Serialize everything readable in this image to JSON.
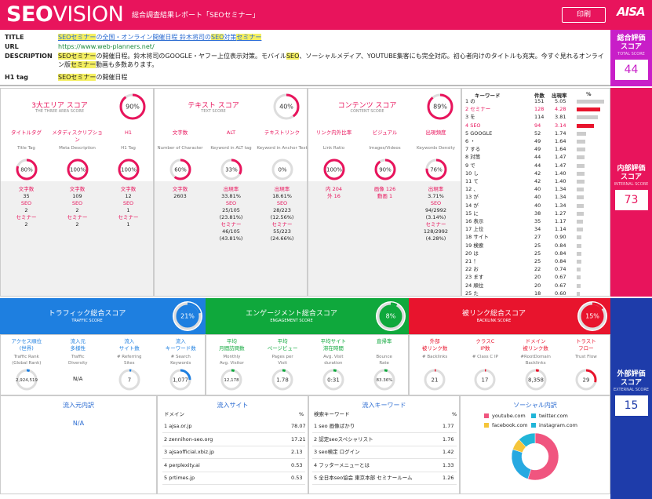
{
  "header": {
    "logo_bold": "SEO",
    "logo_light": "VISION",
    "title": "総合調査結果レポート「SEOセミナー」",
    "print": "印刷",
    "brand": "AISA"
  },
  "meta": {
    "title_k": "TITLE",
    "title_v": "SEOセミナーの全国・オンライン開催日程 鈴木将司のSEO対策セミナー",
    "url_k": "URL",
    "url_v": "https://www.web-planners.net/",
    "desc_k": "DESCRIPTION",
    "desc_v": "SEOセミナーの開催日程。鈴木将司のGOOGLE・ヤフー上位表示対策。モバイルSEO、ソーシャルメディア、YOUTUBE集客にも完全対応。初心者向けのタイトルも充実。今すぐ見れるオンライン版セミナー動画も多数あります。",
    "h1_k": "H1 tag",
    "h1_v": "SEOセミナーの開催日程"
  },
  "side": {
    "total": {
      "t1": "総合評価",
      "t2": "スコア",
      "sub": "TOTAL SCORE",
      "val": "44",
      "color": "#c81ec8"
    },
    "internal": {
      "t1": "内部評価",
      "t2": "スコア",
      "sub": "INTERNAL SCORE",
      "val": "73",
      "color": "#e8145c"
    },
    "external": {
      "t1": "外部評価",
      "t2": "スコア",
      "sub": "EXTERNAL SCORE",
      "val": "15",
      "color": "#1e3caa"
    }
  },
  "areas": [
    {
      "title": "3大エリア スコア",
      "sub": "THE THREE AREA SCORE",
      "score": 90,
      "cols": [
        {
          "t": "タイトルタグ",
          "s": "Title Tag",
          "score": 80,
          "stats": [
            [
              "文字数",
              ""
            ],
            [
              "35",
              "b"
            ],
            [
              "SEO",
              ""
            ],
            [
              "2",
              "b"
            ],
            [
              "セミナー",
              ""
            ],
            [
              "2",
              "b"
            ]
          ]
        },
        {
          "t": "メタディスクリプション",
          "s": "Meta Description",
          "score": 100,
          "stats": [
            [
              "文字数",
              ""
            ],
            [
              "109",
              "b"
            ],
            [
              "SEO",
              ""
            ],
            [
              "2",
              "b"
            ],
            [
              "セミナー",
              ""
            ],
            [
              "2",
              "b"
            ]
          ]
        },
        {
          "t": "H1",
          "s": "H1 Tag",
          "score": 100,
          "stats": [
            [
              "文字数",
              ""
            ],
            [
              "12",
              "b"
            ],
            [
              "SEO",
              ""
            ],
            [
              "1",
              "b"
            ],
            [
              "セミナー",
              ""
            ],
            [
              "1",
              "b"
            ]
          ]
        }
      ]
    },
    {
      "title": "テキスト スコア",
      "sub": "TEXT SCORE",
      "score": 40,
      "cols": [
        {
          "t": "文字数",
          "s": "Number of Character",
          "score": 60,
          "stats": [
            [
              "文字数",
              ""
            ],
            [
              "2603",
              "b"
            ]
          ]
        },
        {
          "t": "ALT",
          "s": "Keyword in ALT tag",
          "score": 33,
          "stats": [
            [
              "出現率",
              ""
            ],
            [
              "33.81%",
              "b"
            ],
            [
              "SEO",
              ""
            ],
            [
              "25/105",
              "b"
            ],
            [
              "(23.81%)",
              "b"
            ],
            [
              "セミナー",
              ""
            ],
            [
              "46/105",
              "b"
            ],
            [
              "(43.81%)",
              "b"
            ]
          ]
        },
        {
          "t": "テキストリンク",
          "s": "Keyword in Anchor Text",
          "score": 0,
          "stats": [
            [
              "出現率",
              ""
            ],
            [
              "18.61%",
              "b"
            ],
            [
              "SEO",
              ""
            ],
            [
              "28/223",
              "b"
            ],
            [
              "(12.56%)",
              "b"
            ],
            [
              "セミナー",
              ""
            ],
            [
              "55/223",
              "b"
            ],
            [
              "(24.66%)",
              "b"
            ]
          ]
        }
      ]
    },
    {
      "title": "コンテンツ スコア",
      "sub": "CONTENT SCORE",
      "score": 89,
      "cols": [
        {
          "t": "リンク内外比率",
          "s": "Link Ratio",
          "score": 100,
          "stats": [
            [
              "内 204",
              ""
            ],
            [
              "外 16",
              ""
            ]
          ]
        },
        {
          "t": "ビジュアル",
          "s": "Images/Videos",
          "score": 90,
          "stats": [
            [
              "画像 126",
              ""
            ],
            [
              "動画 1",
              ""
            ]
          ]
        },
        {
          "t": "出現頻度",
          "s": "Keywords Density",
          "score": 76,
          "stats": [
            [
              "出現率",
              ""
            ],
            [
              "3.71%",
              "b"
            ],
            [
              "SEO",
              ""
            ],
            [
              "94/2992",
              "b"
            ],
            [
              "(3.14%)",
              "b"
            ],
            [
              "セミナー",
              ""
            ],
            [
              "128/2992",
              "b"
            ],
            [
              "(4.28%)",
              "b"
            ]
          ]
        }
      ]
    }
  ],
  "keywords": {
    "h_kw": "キーワード",
    "h_count": "件数",
    "h_rate": "出現率",
    "h_pct": "%",
    "rows": [
      [
        "1",
        "の",
        "151",
        "5.05",
        0
      ],
      [
        "2",
        "セミナー",
        "128",
        "4.28",
        1
      ],
      [
        "3",
        "を",
        "114",
        "3.81",
        0
      ],
      [
        "4",
        "SEO",
        "94",
        "3.14",
        1
      ],
      [
        "5",
        "GOOGLE",
        "52",
        "1.74",
        0
      ],
      [
        "6",
        "・",
        "49",
        "1.64",
        0
      ],
      [
        "7",
        "する",
        "49",
        "1.64",
        0
      ],
      [
        "8",
        "対策",
        "44",
        "1.47",
        0
      ],
      [
        "9",
        "で",
        "44",
        "1.47",
        0
      ],
      [
        "10",
        "し",
        "42",
        "1.40",
        0
      ],
      [
        "11",
        "て",
        "42",
        "1.40",
        0
      ],
      [
        "12",
        "、",
        "40",
        "1.34",
        0
      ],
      [
        "13",
        "が",
        "40",
        "1.34",
        0
      ],
      [
        "14",
        "が",
        "40",
        "1.34",
        0
      ],
      [
        "15",
        "に",
        "38",
        "1.27",
        0
      ],
      [
        "16",
        "表示",
        "35",
        "1.17",
        0
      ],
      [
        "17",
        "上位",
        "34",
        "1.14",
        0
      ],
      [
        "18",
        "サイト",
        "27",
        "0.90",
        0
      ],
      [
        "19",
        "検索",
        "25",
        "0.84",
        0
      ],
      [
        "20",
        "は",
        "25",
        "0.84",
        0
      ],
      [
        "21",
        "！",
        "25",
        "0.84",
        0
      ],
      [
        "22",
        "お",
        "22",
        "0.74",
        0
      ],
      [
        "23",
        "ます",
        "20",
        "0.67",
        0
      ],
      [
        "24",
        "順位",
        "20",
        "0.67",
        0
      ],
      [
        "25",
        "た",
        "18",
        "0.60",
        0
      ]
    ]
  },
  "bands": [
    {
      "title": "トラフィック総合スコア",
      "sub": "TRAFFIC SCORE",
      "score": 21,
      "color": "#1e7fe0",
      "ringColor": "#1e7fe0",
      "cols": [
        {
          "t1": "アクセス順位",
          "t2": "(世界)",
          "s": [
            "Traffic Rank",
            "(Global Rank)"
          ],
          "val": "2,924,519",
          "arc": 0.05
        },
        {
          "t1": "流入元",
          "t2": "多様性",
          "s": [
            "Traffic",
            "Diversity"
          ],
          "val": "N/A",
          "arc": -1
        },
        {
          "t1": "流入",
          "t2": "サイト数",
          "s": [
            "# Referring",
            "Sites"
          ],
          "val": "7",
          "arc": 0.03
        },
        {
          "t1": "流入",
          "t2": "キーワード数",
          "s": [
            "# Search",
            "Keywords"
          ],
          "val": "1,077",
          "arc": 0.25
        }
      ]
    },
    {
      "title": "エンゲージメント総合スコア",
      "sub": "ENGAGEMENT SCORE",
      "score": 8,
      "color": "#0fa83c",
      "ringColor": "#0fa83c",
      "cols": [
        {
          "t1": "平均",
          "t2": "月間訪問数",
          "s": [
            "Monthly",
            "Avg. Visitor"
          ],
          "val": "12,178",
          "arc": 0.05
        },
        {
          "t1": "平均",
          "t2": "ページビュー",
          "s": [
            "Pages per",
            "Visit"
          ],
          "val": "1.78",
          "arc": 0.05
        },
        {
          "t1": "平均サイト",
          "t2": "滞在時間",
          "s": [
            "Avg. Visit",
            "duration"
          ],
          "val": "0:31",
          "arc": 0.05
        },
        {
          "t1": "直帰率",
          "t2": "",
          "s": [
            "Bounce",
            "Rate"
          ],
          "val": "83.36%",
          "arc": 0.05
        }
      ]
    },
    {
      "title": "被リンク総合スコア",
      "sub": "BACKLINK SCORE",
      "score": 15,
      "color": "#e8142d",
      "ringColor": "#e8142d",
      "cols": [
        {
          "t1": "外部",
          "t2": "被リンク数",
          "s": [
            "# Backlinks",
            ""
          ],
          "val": "21",
          "arc": 0.02
        },
        {
          "t1": "クラスC",
          "t2": "IP数",
          "s": [
            "# Class C IP",
            ""
          ],
          "val": "17",
          "arc": 0.02
        },
        {
          "t1": "ドメイン",
          "t2": "被リンク数",
          "s": [
            "#RootDomain",
            "Backlinks"
          ],
          "val": "8,358",
          "arc": 0.05
        },
        {
          "t1": "トラスト",
          "t2": "フロー",
          "s": [
            "Trust Flow",
            ""
          ],
          "val": "29",
          "arc": 0.29
        }
      ]
    }
  ],
  "bottom": {
    "inflow": {
      "title": "流入元内訳",
      "val": "N/A"
    },
    "sites": {
      "title": "流入サイト",
      "h1": "ドメイン",
      "h2": "%",
      "rows": [
        [
          "1",
          "ajsa.or.jp",
          "78.07"
        ],
        [
          "2",
          "zennihon-seo.org",
          "17.21"
        ],
        [
          "3",
          "ajsaofficial.xbiz.jp",
          "2.13"
        ],
        [
          "4",
          "perplexity.ai",
          "0.53"
        ],
        [
          "5",
          "prtimes.jp",
          "0.53"
        ]
      ]
    },
    "kws": {
      "title": "流入キーワード",
      "h1": "検索キーワード",
      "h2": "%",
      "rows": [
        [
          "1",
          "seo 画像ばかり",
          "1.77"
        ],
        [
          "2",
          "認定seoスペシャリスト",
          "1.76"
        ],
        [
          "3",
          "seo検定 ログイン",
          "1.42"
        ],
        [
          "4",
          "フッターメニューとは",
          "1.33"
        ],
        [
          "5",
          "全日本seo協会 東京本部 セミナールーム",
          "1.26"
        ]
      ]
    },
    "social": {
      "title": "ソーシャル内訳",
      "legend": [
        [
          "youtube.com",
          "#f0557f"
        ],
        [
          "twitter.com",
          "#21b5d8"
        ],
        [
          "facebook.com",
          "#f5c53a"
        ],
        [
          "instagram.com",
          "#21b5d8"
        ]
      ],
      "slices": [
        [
          "youtube.com",
          55,
          "#f0557f"
        ],
        [
          "twitter.com",
          25,
          "#27a9e1"
        ],
        [
          "facebook.com",
          8,
          "#f5c53a"
        ],
        [
          "instagram.com",
          12,
          "#21b5d8"
        ]
      ]
    }
  }
}
